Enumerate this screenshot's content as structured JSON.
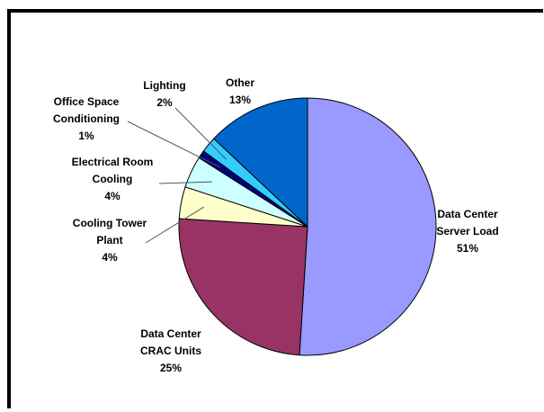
{
  "chart_data": {
    "type": "pie",
    "title": "",
    "slices": [
      {
        "name": "Data Center Server Load",
        "lines": [
          "Data Center",
          "Server Load"
        ],
        "value": 51,
        "label": "51%",
        "color": "#9999FF"
      },
      {
        "name": "Data Center CRAC Units",
        "lines": [
          "Data Center",
          "CRAC Units"
        ],
        "value": 25,
        "label": "25%",
        "color": "#993366"
      },
      {
        "name": "Cooling Tower Plant",
        "lines": [
          "Cooling Tower",
          "Plant"
        ],
        "value": 4,
        "label": "4%",
        "color": "#FFFFCC"
      },
      {
        "name": "Electrical Room Cooling",
        "lines": [
          "Electrical Room",
          "Cooling"
        ],
        "value": 4,
        "label": "4%",
        "color": "#CCFFFF"
      },
      {
        "name": "Office Space Conditioning",
        "lines": [
          "Office Space",
          "Conditioning"
        ],
        "value": 1,
        "label": "1%",
        "color": "#000080"
      },
      {
        "name": "Lighting",
        "lines": [
          "Lighting"
        ],
        "value": 2,
        "label": "2%",
        "color": "#33CCFF"
      },
      {
        "name": "Other",
        "lines": [
          "Other"
        ],
        "value": 13,
        "label": "13%",
        "color": "#0066CC"
      }
    ]
  }
}
